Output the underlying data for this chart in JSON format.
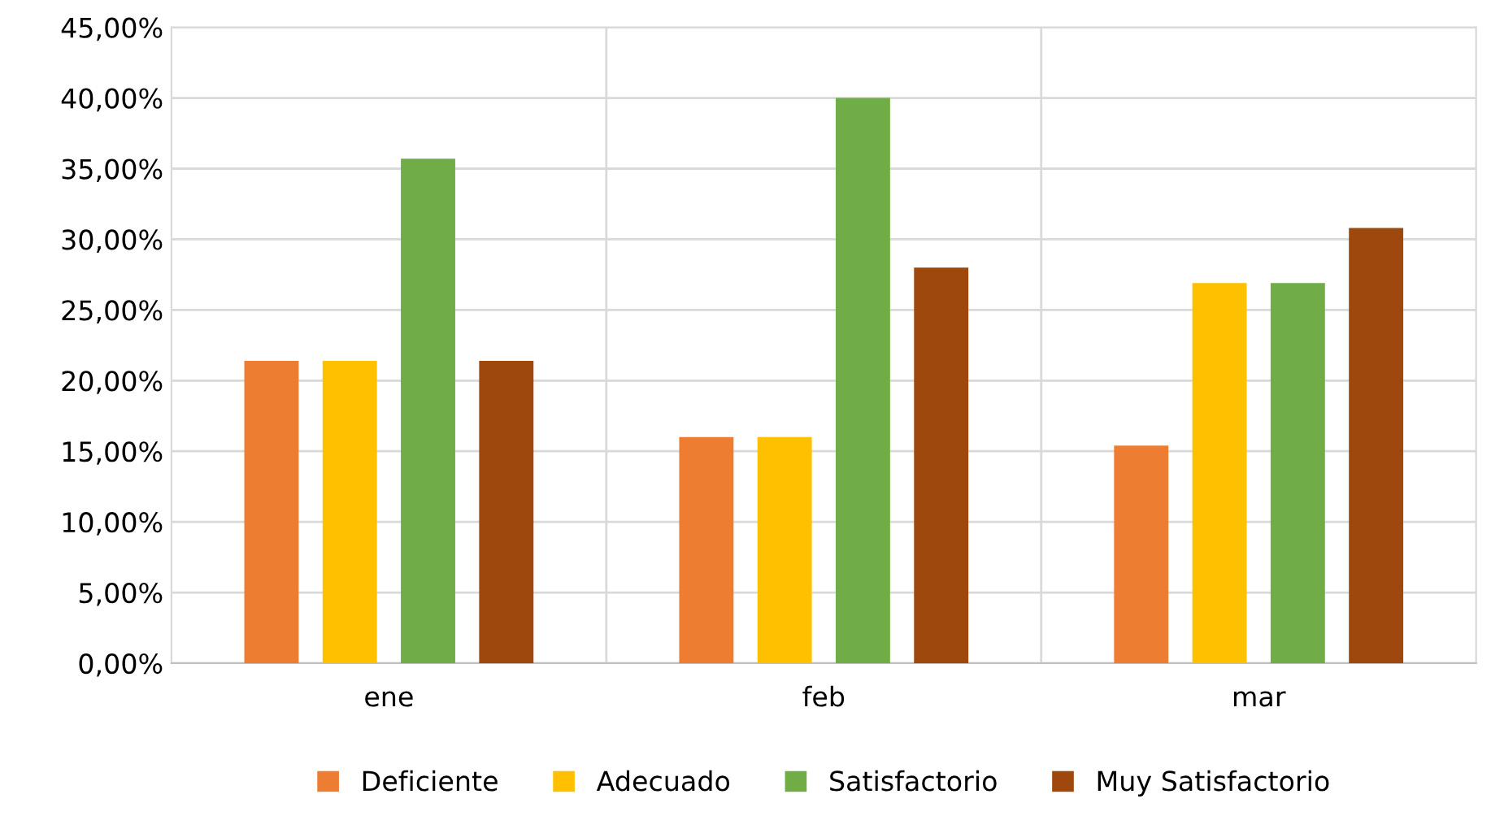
{
  "chart_data": {
    "type": "bar",
    "categories": [
      "ene",
      "feb",
      "mar"
    ],
    "series": [
      {
        "name": "Deficiente",
        "color": "#ed7d31",
        "values": [
          21.4,
          16,
          15.4
        ]
      },
      {
        "name": "Adecuado",
        "color": "#ffc000",
        "values": [
          21.4,
          16,
          26.9
        ]
      },
      {
        "name": "Satisfactorio",
        "color": "#70ad47",
        "values": [
          35.7,
          40,
          26.9
        ]
      },
      {
        "name": "Muy Satisfactorio",
        "color": "#9e480e",
        "values": [
          21.4,
          28,
          30.8
        ]
      }
    ],
    "ylim": [
      0,
      45
    ],
    "yticks": [
      {
        "value": 0,
        "label": "0,00%"
      },
      {
        "value": 5,
        "label": "5,00%"
      },
      {
        "value": 10,
        "label": "10,00%"
      },
      {
        "value": 15,
        "label": "15,00%"
      },
      {
        "value": 20,
        "label": "20,00%"
      },
      {
        "value": 25,
        "label": "25,00%"
      },
      {
        "value": 30,
        "label": "30,00%"
      },
      {
        "value": 35,
        "label": "35,00%"
      },
      {
        "value": 40,
        "label": "40,00%"
      },
      {
        "value": 45,
        "label": "45,00%"
      }
    ],
    "grid": true,
    "legend": "bottom"
  }
}
